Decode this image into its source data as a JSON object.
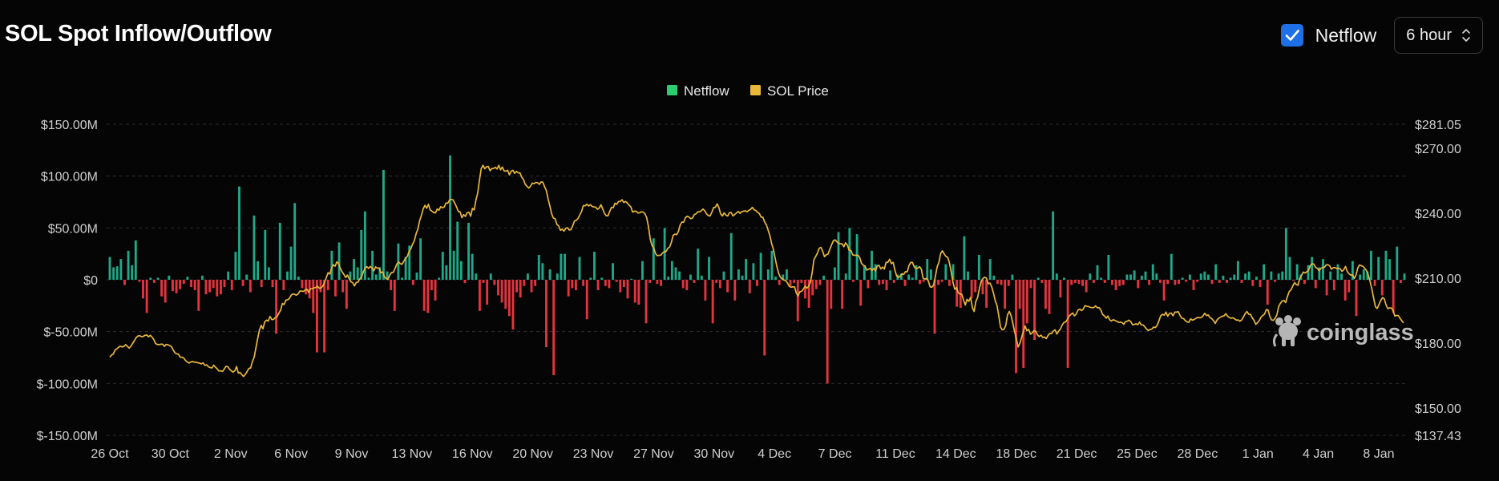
{
  "title": "SOL Spot Inflow/Outflow",
  "controls": {
    "netflow_checkbox_label": "Netflow",
    "netflow_checked": true,
    "interval_value": "6 hour"
  },
  "watermark": "coinglass",
  "colors": {
    "positive": "#1fa889",
    "negative": "#e6343f",
    "price": "#e8b73c",
    "legend_netflow": "#2ecc71",
    "legend_price": "#e8b73c",
    "accent": "#1f6fe6"
  },
  "chart_data": {
    "type": "bar",
    "legend": [
      "Netflow",
      "SOL Price"
    ],
    "legend_position": "top-center",
    "grid": true,
    "x_labels": [
      "26 Oct",
      "30 Oct",
      "2 Nov",
      "6 Nov",
      "9 Nov",
      "13 Nov",
      "16 Nov",
      "20 Nov",
      "23 Nov",
      "27 Nov",
      "30 Nov",
      "4 Dec",
      "7 Dec",
      "11 Dec",
      "14 Dec",
      "18 Dec",
      "21 Dec",
      "25 Dec",
      "28 Dec",
      "1 Jan",
      "4 Jan",
      "8 Jan"
    ],
    "left_axis": {
      "ticks": [
        "$150.00M",
        "$100.00M",
        "$50.00M",
        "$0",
        "$-50.00M",
        "$-100.00M",
        "$-150.00M"
      ],
      "range": [
        -150,
        150
      ],
      "unit": "$M"
    },
    "right_axis": {
      "ticks": [
        "$281.05",
        "$270.00",
        "$240.00",
        "$210.00",
        "$180.00",
        "$150.00",
        "$137.43"
      ],
      "range": [
        137.43,
        281.05
      ]
    },
    "series": [
      {
        "name": "Netflow",
        "type": "bar",
        "values": [
          22,
          12,
          13,
          20,
          -5,
          28,
          14,
          38,
          -2,
          -18,
          -32,
          2,
          -3,
          2,
          -16,
          -22,
          4,
          -11,
          -13,
          -9,
          -4,
          3,
          -7,
          -10,
          -30,
          4,
          -14,
          -12,
          -8,
          -16,
          -14,
          -7,
          8,
          -10,
          27,
          90,
          -6,
          5,
          -12,
          62,
          18,
          -7,
          48,
          12,
          -7,
          -52,
          55,
          -10,
          8,
          32,
          74,
          3,
          -8,
          -14,
          -18,
          -32,
          -70,
          -12,
          -70,
          -10,
          28,
          -16,
          36,
          -12,
          -28,
          8,
          20,
          12,
          48,
          66,
          2,
          28,
          5,
          12,
          106,
          8,
          -10,
          -30,
          35,
          2,
          22,
          33,
          -5,
          7,
          40,
          -30,
          -32,
          -10,
          -20,
          2,
          27,
          14,
          120,
          28,
          56,
          18,
          -3,
          55,
          25,
          6,
          -30,
          -3,
          -24,
          6,
          -5,
          -15,
          -22,
          -28,
          -35,
          -48,
          -12,
          -17,
          -6,
          6,
          -12,
          -6,
          24,
          16,
          -65,
          10,
          -92,
          6,
          25,
          25,
          -16,
          -8,
          -10,
          22,
          -6,
          -38,
          2,
          27,
          -10,
          2,
          -6,
          -8,
          16,
          -2,
          -12,
          -7,
          -18,
          1,
          -22,
          -24,
          18,
          -42,
          -3,
          40,
          -4,
          -6,
          50,
          3,
          18,
          12,
          8,
          -8,
          -10,
          5,
          -3,
          30,
          4,
          -20,
          22,
          -42,
          -3,
          -8,
          8,
          -12,
          45,
          -20,
          10,
          4,
          20,
          -13,
          16,
          -6,
          26,
          -73,
          10,
          28,
          3,
          -5,
          5,
          10,
          -6,
          -3,
          -40,
          -3,
          -18,
          -27,
          -15,
          -9,
          -5,
          4,
          -100,
          -28,
          12,
          46,
          -28,
          6,
          50,
          -2,
          44,
          -25,
          14,
          -8,
          28,
          15,
          -5,
          -4,
          -10,
          9,
          -3,
          5,
          6,
          -6,
          5,
          2,
          14,
          -4,
          -2,
          20,
          10,
          -52,
          -5,
          -2,
          15,
          -6,
          15,
          -26,
          -27,
          42,
          8,
          -18,
          -12,
          24,
          -14,
          -27,
          20,
          4,
          -4,
          -5,
          -28,
          -6,
          5,
          -90,
          -28,
          -85,
          -42,
          -8,
          -58,
          2,
          -3,
          -28,
          -33,
          66,
          6,
          -17,
          2,
          -85,
          -5,
          -3,
          -4,
          -6,
          -12,
          6,
          -3,
          14,
          2,
          -3,
          24,
          -5,
          -10,
          -6,
          -5,
          5,
          5,
          9,
          -8,
          4,
          8,
          -5,
          15,
          6,
          -3,
          -20,
          -4,
          25,
          -5,
          -4,
          2,
          -2,
          5,
          -10,
          -2,
          6,
          8,
          5,
          -4,
          15,
          -3,
          4,
          -3,
          2,
          5,
          18,
          -3,
          6,
          8,
          -6,
          3,
          -7,
          15,
          -24,
          8,
          -2,
          6,
          8,
          50,
          22,
          -1,
          15,
          5,
          -4,
          14,
          22,
          -8,
          12,
          20,
          -15,
          8,
          -10,
          15,
          6,
          -20,
          -12,
          18,
          -35,
          5,
          10,
          8,
          28,
          -6,
          22,
          -15,
          28,
          20,
          -32,
          32,
          -3,
          6
        ]
      },
      {
        "name": "SOL Price",
        "type": "line",
        "axis": "right",
        "values": [
          173.5,
          174.5,
          175,
          176.8,
          177.4,
          178.1,
          178.6,
          178.2,
          178.5,
          179.3,
          178.5,
          177.7,
          178.6,
          179.9,
          181.2,
          182.6,
          183.3,
          183.4,
          183,
          183.1,
          183.6,
          183.7,
          182.9,
          183.6,
          182.8,
          181.6,
          179.8,
          179.4,
          179.3,
          179.5,
          179.5,
          178.5,
          179.4,
          179.2,
          178.9,
          178.4,
          176.8,
          175.6,
          175,
          174.9,
          173.5,
          173.5,
          173.1,
          172,
          171.3,
          170.8,
          171.3,
          171.5,
          171.2,
          171.2,
          170.9,
          170.8,
          170.4,
          170.9,
          169.7,
          170,
          169.1,
          168.7,
          168.5,
          169.8,
          168.9,
          168.1,
          167.1,
          167.2,
          166.9,
          168,
          169.3,
          169.1,
          168,
          167.2,
          166.6,
          167.2,
          169.2,
          166.2,
          166.4,
          165.4,
          164.6,
          165.6,
          166.9,
          168.3,
          168.5,
          171.5,
          173.5,
          177.8,
          182.1,
          186.1,
          188.2,
          186.6,
          189.8,
          190.6,
          190.2,
          192.3,
          190.9,
          190.9,
          191.8,
          192.2,
          193.8,
          195.1,
          198.3,
          197.8,
          199.8,
          200,
          200.6,
          202.1,
          202.7,
          202.5,
          202.1,
          202.8,
          204,
          204,
          203.9,
          204.5,
          204.9,
          203.3,
          205.1,
          205.1,
          205.5,
          205.7,
          206.3,
          205.3,
          205.5,
          206.3,
          208.1,
          210.3,
          212.5,
          211.9,
          214.7,
          216.2,
          215.5,
          217.5,
          216.7,
          214.4,
          212.9,
          211.7,
          210.3,
          211.4,
          209.7,
          208.3,
          207.9,
          206.4,
          208,
          208.2,
          209.7,
          210.5,
          212.9,
          214.6,
          215.3,
          214.5,
          215.4,
          214.7,
          213.4,
          215.2,
          214.6,
          214.7,
          212.4,
          212.9,
          210.6,
          209.8,
          209.4,
          211.3,
          212.6,
          212.6,
          214.4,
          216.4,
          217.5,
          216.7,
          216.4,
          217.8,
          219.2,
          220,
          222.3,
          223.6,
          225.7,
          227.3,
          230.5,
          232.6,
          236.5,
          239,
          241.9,
          243.6,
          242.3,
          244.1,
          241.5,
          240.9,
          240.3,
          240.1,
          241.9,
          241.4,
          243,
          242.5,
          242.9,
          244.7,
          244.6,
          246.1,
          246.4,
          246.1,
          244.6,
          242.8,
          240.8,
          240.6,
          237.9,
          239.3,
          238.5,
          240.2,
          240.4,
          238.6,
          242.2,
          241.5,
          246.1,
          249.3,
          255.3,
          260.6,
          262.1,
          260.5,
          261.4,
          261.6,
          259.6,
          260.6,
          260.6,
          261.2,
          260.4,
          262.1,
          260,
          261.3,
          259.5,
          259.4,
          259.8,
          257.7,
          259.4,
          259.8,
          258.4,
          259.3,
          258.6,
          258.6,
          256.6,
          255.5,
          253.3,
          252.4,
          251.6,
          252.4,
          253.9,
          253.6,
          254.2,
          254.1,
          253.3,
          254.4,
          254.3,
          252.2,
          250.4,
          246.5,
          243.3,
          239.7,
          237.7,
          237.4,
          234.8,
          234.1,
          232.1,
          232.6,
          231.7,
          233,
          233.3,
          232.2,
          232.4,
          234.3,
          236.4,
          236.7,
          237.5,
          239.2,
          240.8,
          243.5,
          243.4,
          244.1,
          243.3,
          243.9,
          243.1,
          242.9,
          242.8,
          241.8,
          242.3,
          243.9,
          242,
          239.9,
          238.8,
          238.8,
          240.8,
          242.7,
          242.5,
          244.6,
          244.1,
          245.4,
          245.4,
          246.2,
          244.9,
          245.4,
          244.7,
          243.7,
          242.9,
          240.5,
          240.9,
          240.9,
          240.1,
          240.2,
          240.6,
          240.5,
          239.7,
          237.9,
          233.8,
          228.1,
          225.1,
          223.9,
          221.4,
          220.4,
          220.5,
          220.6,
          221.6,
          222.2,
          222.3,
          223.8,
          224.3,
          226.5,
          229.7,
          230.3,
          230.1,
          231.5,
          234.5,
          235.9,
          235.8,
          237.9,
          238.6,
          238.2,
          237.5,
          237.7,
          239.3,
          239.7,
          240.6,
          240.6,
          241.1,
          241.9,
          241.1,
          239.7,
          238.9,
          238.7,
          240.4,
          242.6,
          242.7,
          244.3,
          242.6,
          239.7,
          238.7,
          240.2,
          239.1,
          238.7,
          240.2,
          240.3,
          238.7,
          239.4,
          240.1,
          240.8,
          239.9,
          240.7,
          240.9,
          241.1,
          240.6,
          241.3,
          241.7,
          242.7,
          241.6,
          241.2,
          240.4,
          239.8,
          238.2,
          238.1,
          235.9,
          234.6,
          232.1,
          229.6,
          225.9,
          223.2,
          219.1,
          215.2,
          212.1,
          210.4,
          209.6,
          209.1,
          208.9,
          207.7,
          206.2,
          205.8,
          206,
          205.9,
          203.1,
          201.8,
          203.7,
          203.9,
          205,
          206.2,
          205.4,
          206.2,
          208.2,
          212.5,
          218.5,
          220,
          221.6,
          223.8,
          224.2,
          222.3,
          219.9,
          220.8,
          221.1,
          223.3,
          225.3,
          227.2,
          227.7,
          226.8,
          226.1,
          225.9,
          225.8,
          224.5,
          226.3,
          225.3,
          222.8,
          222.8,
          220.8,
          220.5,
          220.6,
          220.6,
          219.5,
          216.9,
          216,
          215.6,
          213.7,
          214.1,
          214.5,
          213.5,
          214.5,
          213.3,
          215.7,
          215.9,
          214.3,
          215.1,
          214.2,
          217.3,
          217.3,
          218.7,
          216.7,
          217.3,
          213.7,
          211,
          210.3,
          210.9,
          212,
          211.7,
          213,
          212.9,
          215.8,
          217.3,
          217.2,
          215.2,
          214.4,
          214.6,
          215.3,
          214.2,
          210,
          209.5,
          209.9,
          208.7,
          206,
          205.8,
          206.8,
          210.8,
          215.2,
          217.3,
          221.4,
          222.6,
          221.2,
          220,
          219.6,
          217,
          212.8,
          208.1,
          204.9,
          205.6,
          203.2,
          202.6,
          202.6,
          199.8,
          197.6,
          200.2,
          199.3,
          201.1,
          196.5,
          194.6,
          199.3,
          201.1,
          205.1,
          208.5,
          209.8,
          210.4,
          210,
          207.4,
          207.7,
          206,
          203.1,
          199.6,
          197.4,
          192.7,
          187.4,
          186.1,
          186.4,
          188.2,
          193.1,
          194.6,
          192.8,
          189.2,
          185.3,
          181.9,
          178.2,
          179.9,
          182.6,
          185.5,
          187.9,
          185.7,
          186.3,
          184.1,
          184.7,
          185.8,
          185.5,
          183.8,
          183,
          183.7,
          182.6,
          182.8,
          182.1,
          183.5,
          184.5,
          184.4,
          185.6,
          186.1,
          184.2,
          185.5,
          186.5,
          188.3,
          189.5,
          189.8,
          190.9,
          192.5,
          193.2,
          193.9,
          192.6,
          193.4,
          195.2,
          195.7,
          195,
          195.7,
          197.3,
          197,
          196.9,
          196.5,
          196.4,
          196.4,
          197.2,
          196.3,
          196.4,
          195.3,
          193.2,
          192.6,
          191.5,
          192.5,
          190.8,
          190.2,
          190.8,
          190.5,
          190.1,
          189.6,
          189.7,
          189.5,
          188.7,
          189.9,
          190.1,
          190.6,
          189.9,
          188.5,
          188.6,
          188.9,
          188.5,
          189.7,
          188.4,
          188.4,
          187.5,
          186.5,
          185.8,
          186.3,
          186.5,
          187.4,
          187.2,
          188.2,
          190.3,
          192.6,
          193.3,
          192.9,
          194.3,
          192.4,
          193.7,
          193.9,
          192.6,
          194.3,
          194.3,
          194.5,
          192.8,
          191.5,
          191.3,
          190.4,
          189.8,
          189.6,
          191.2,
          190.6,
          190.9,
          191.4,
          191.9,
          191.7,
          191.8,
          192.5,
          193.8,
          192.7,
          193,
          191.8,
          191.3,
          190.4,
          189.1,
          190.7,
          191.5,
          192,
          192.4,
          192.6,
          193.6,
          192.4,
          191.8,
          191.5,
          191.7,
          191.2,
          190.6,
          190.7,
          190.1,
          190.7,
          192.1,
          193.6,
          194.6,
          193.3,
          193.3,
          191.7,
          190.5,
          188.7,
          189.4,
          190.4,
          192,
          192.8,
          193.4,
          195.5,
          195.3,
          192.3,
          190.7,
          190.5,
          191.5,
          193,
          196.8,
          198.4,
          199.4,
          199.7,
          198.7,
          201.5,
          203.8,
          204.6,
          206.3,
          207.9,
          207.1,
          206.7,
          209.9,
          211.3,
          212.8,
          212.4,
          212.9,
          213.6,
          215.8,
          216.6,
          216.5,
          215,
          214.5,
          213.4,
          214.5,
          214.9,
          215,
          216.1,
          216.2,
          215.7,
          214.1,
          214.8,
          214.9,
          214.4,
          214.6,
          214.3,
          213.1,
          213.9,
          215.4,
          213.1,
          212,
          211.4,
          211.4,
          209.9,
          211.5,
          214.8,
          216.1,
          215.7,
          215.4,
          214.4,
          213.4,
          211.3,
          208.3,
          204.8,
          200.7,
          196.8,
          196,
          197.8,
          199.7,
          201,
          200.5,
          197.7,
          195.9,
          196.3,
          196.2,
          195.2,
          192.5,
          192.8,
          192.7,
          191.4,
          190.3,
          189.3
        ]
      }
    ]
  }
}
